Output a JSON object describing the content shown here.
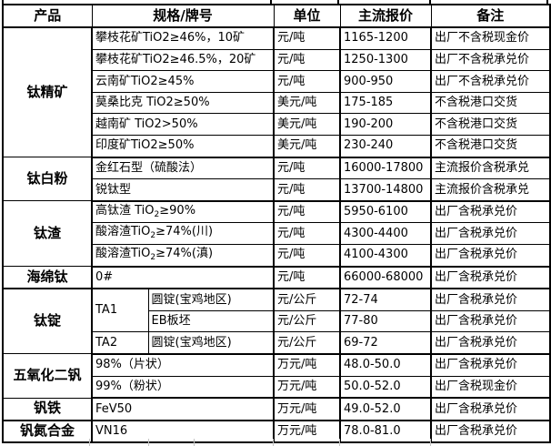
{
  "colors": {
    "background": "#ffffff",
    "border": "#000000",
    "text": "#000000",
    "faint_gridline": "#c4c4c4"
  },
  "table": {
    "headers": {
      "product": "产品",
      "spec": "规格/牌号",
      "unit": "单位",
      "price": "主流报价",
      "note": "备注"
    },
    "groups": [
      {
        "product": "钛精矿",
        "rows": [
          {
            "spec": "攀枝花矿TiO2≥46%，10矿",
            "unit": "元/吨",
            "price": "1165-1200",
            "note": "出厂不含税现金价"
          },
          {
            "spec": "攀枝花矿TiO2≥46.5%，20矿",
            "unit": "元/吨",
            "price": "1250-1300",
            "note": "出厂不含税承兑价"
          },
          {
            "spec": "云南矿TiO2≥45%",
            "unit": "元/吨",
            "price": "900-950",
            "note": "出厂不含税承兑价"
          },
          {
            "spec": "莫桑比克 TiO2≥50%",
            "unit": "美元/吨",
            "price": "175-185",
            "note": "不含税港口交货"
          },
          {
            "spec": "越南矿 TiO2>50%",
            "unit": "美元/吨",
            "price": "190-200",
            "note": "不含税港口交货"
          },
          {
            "spec": "印度矿TiO2≥50%",
            "unit": "美元/吨",
            "price": "230-240",
            "note": "不含税港口交货"
          }
        ]
      },
      {
        "product": "钛白粉",
        "rows": [
          {
            "spec": "金红石型（硫酸法）",
            "unit": "元/吨",
            "price": "16000-17800",
            "note": "主流报价含税承兑"
          },
          {
            "spec": "锐钛型",
            "unit": "元/吨",
            "price": "13700-14800",
            "note": "主流报价含税承兑"
          }
        ]
      },
      {
        "product": "钛渣",
        "rows": [
          {
            "spec_parts": [
              {
                "t": "高钛渣 TiO"
              },
              {
                "t": "2",
                "sub": true
              },
              {
                "t": "≥90%"
              }
            ],
            "unit": "元/吨",
            "price": "5950-6100",
            "note": "出厂含税承兑价"
          },
          {
            "spec_parts": [
              {
                "t": "酸溶渣TiO"
              },
              {
                "t": "2",
                "sub": true
              },
              {
                "t": "≥74%(川)"
              }
            ],
            "unit": "元/吨",
            "price": "4300-4400",
            "note": "出厂含税承兑价"
          },
          {
            "spec_parts": [
              {
                "t": "酸溶渣TiO"
              },
              {
                "t": "2",
                "sub": true
              },
              {
                "t": "≥74%(滇)"
              }
            ],
            "unit": "元/吨",
            "price": "4100-4300",
            "note": "出厂含税承兑价"
          }
        ]
      },
      {
        "product": "海绵钛",
        "rows": [
          {
            "spec": "0#",
            "unit": "元/吨",
            "price": "66000-68000",
            "note": "出厂含税承兑价"
          }
        ]
      },
      {
        "product": "钛锭",
        "sub_columns": true,
        "rows": [
          {
            "grade": "TA1",
            "grade_span": 2,
            "spec": "圆锭(宝鸡地区)",
            "unit": "元/公斤",
            "price": "72-74",
            "note": "出厂含税承兑价"
          },
          {
            "spec": "EB板坯",
            "unit": "元/公斤",
            "price": "77-80",
            "note": "出厂含税承兑价"
          },
          {
            "grade": "TA2",
            "grade_span": 1,
            "spec": "圆锭(宝鸡地区)",
            "unit": "元/公斤",
            "price": "69-72",
            "note": "出厂含税承兑价"
          }
        ]
      },
      {
        "product": "五氧化二钒",
        "rows": [
          {
            "spec": "98%（片状）",
            "unit": "万元/吨",
            "price": "48.0-50.0",
            "note": "出厂含税承兑价"
          },
          {
            "spec": "99%（粉状）",
            "unit": "万元/吨",
            "price": "50.0-52.0",
            "note": "出厂含税现金价"
          }
        ]
      },
      {
        "product": "钒铁",
        "rows": [
          {
            "spec": "FeV50",
            "unit": "万元/吨",
            "price": "49.0-52.0",
            "note": "出厂含税承兑价"
          }
        ]
      },
      {
        "product": "钒氮合金",
        "rows": [
          {
            "spec": "VN16",
            "unit": "万元/吨",
            "price": "78.0-81.0",
            "note": "出厂含税承兑价"
          }
        ]
      }
    ]
  }
}
